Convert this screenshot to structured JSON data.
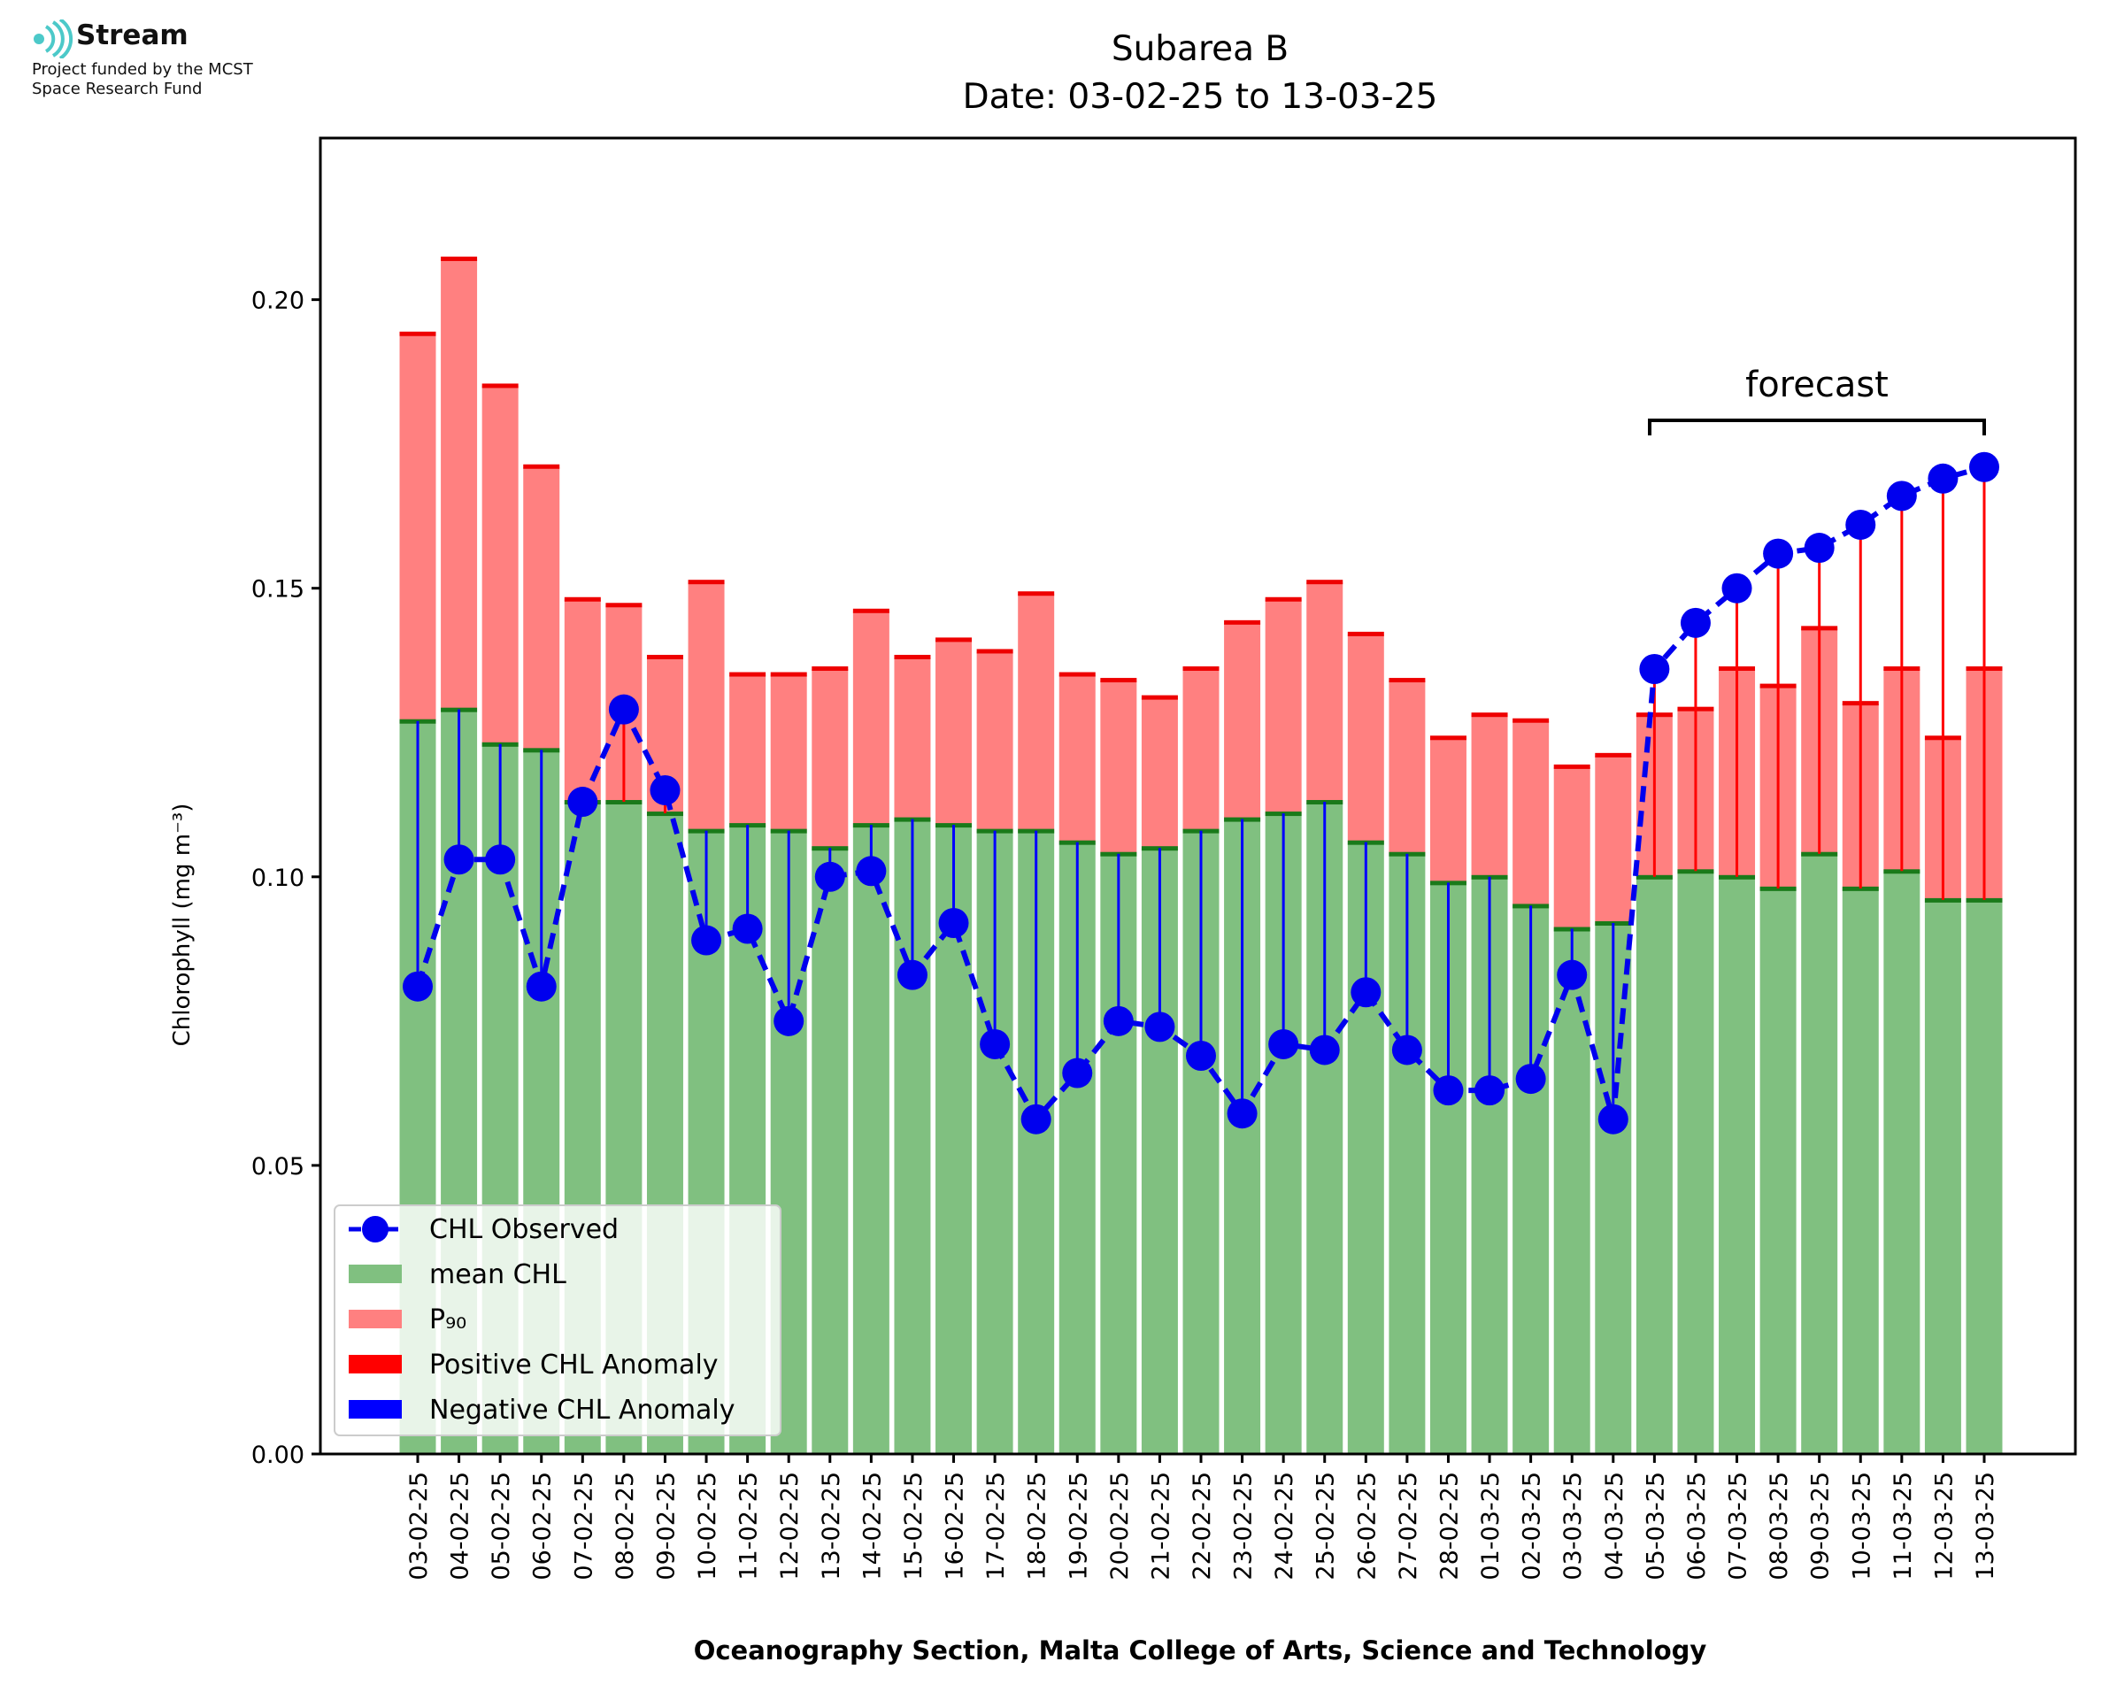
{
  "logo": {
    "name": "Stream",
    "line1": "Project funded by the MCST",
    "line2": "Space Research Fund",
    "icon": "stream-waves-icon",
    "color": "#4cc9c9"
  },
  "chart_data": {
    "type": "bar",
    "title": "Subarea B",
    "subtitle": "Date: 03-02-25 to 13-03-25",
    "xlabel": "Oceanography Section, Malta College of Arts, Science and Technology",
    "ylabel": "Chlorophyll (mg m⁻³)",
    "ylim": [
      0,
      0.228
    ],
    "yticks": [
      "0.00",
      "0.05",
      "0.10",
      "0.15",
      "0.20"
    ],
    "grid": false,
    "legend_position": "lower-left",
    "forecast_label": "forecast",
    "forecast_range": [
      "05-03-25",
      "13-03-25"
    ],
    "categories": [
      "03-02-25",
      "04-02-25",
      "05-02-25",
      "06-02-25",
      "07-02-25",
      "08-02-25",
      "09-02-25",
      "10-02-25",
      "11-02-25",
      "12-02-25",
      "13-02-25",
      "14-02-25",
      "15-02-25",
      "16-02-25",
      "17-02-25",
      "18-02-25",
      "19-02-25",
      "20-02-25",
      "21-02-25",
      "22-02-25",
      "23-02-25",
      "24-02-25",
      "25-02-25",
      "26-02-25",
      "27-02-25",
      "28-02-25",
      "01-03-25",
      "02-03-25",
      "03-03-25",
      "04-03-25",
      "05-03-25",
      "06-03-25",
      "07-03-25",
      "08-03-25",
      "09-03-25",
      "10-03-25",
      "11-03-25",
      "12-03-25",
      "13-03-25"
    ],
    "series": [
      {
        "name": "mean CHL",
        "color": "#80c080",
        "values": [
          0.127,
          0.129,
          0.123,
          0.122,
          0.113,
          0.113,
          0.111,
          0.108,
          0.109,
          0.108,
          0.105,
          0.109,
          0.11,
          0.109,
          0.108,
          0.108,
          0.106,
          0.104,
          0.105,
          0.108,
          0.11,
          0.111,
          0.113,
          0.106,
          0.104,
          0.099,
          0.1,
          0.095,
          0.091,
          0.092,
          0.1,
          0.101,
          0.1,
          0.098,
          0.104,
          0.098,
          0.101,
          0.096,
          0.096
        ]
      },
      {
        "name": "P₉₀",
        "color": "#ff8080",
        "values": [
          0.194,
          0.207,
          0.185,
          0.171,
          0.148,
          0.147,
          0.138,
          0.151,
          0.135,
          0.135,
          0.136,
          0.146,
          0.138,
          0.141,
          0.139,
          0.149,
          0.135,
          0.134,
          0.131,
          0.136,
          0.144,
          0.148,
          0.151,
          0.142,
          0.134,
          0.124,
          0.128,
          0.127,
          0.119,
          0.121,
          0.128,
          0.129,
          0.136,
          0.133,
          0.143,
          0.13,
          0.136,
          0.124,
          0.136
        ]
      },
      {
        "name": "CHL Observed",
        "color": "#0000ee",
        "values": [
          0.081,
          0.103,
          0.103,
          0.081,
          0.113,
          0.129,
          0.115,
          0.089,
          0.091,
          0.075,
          0.1,
          0.101,
          0.083,
          0.092,
          0.071,
          0.058,
          0.066,
          0.075,
          0.074,
          0.069,
          0.059,
          0.071,
          0.07,
          0.08,
          0.07,
          0.063,
          0.063,
          0.065,
          0.083,
          0.058,
          0.136,
          0.144,
          0.15,
          0.156,
          0.157,
          0.161,
          0.166,
          0.169,
          0.171
        ]
      },
      {
        "name": "Positive CHL Anomaly",
        "color": "#ff0000"
      },
      {
        "name": "Negative CHL Anomaly",
        "color": "#0000ff"
      }
    ]
  }
}
